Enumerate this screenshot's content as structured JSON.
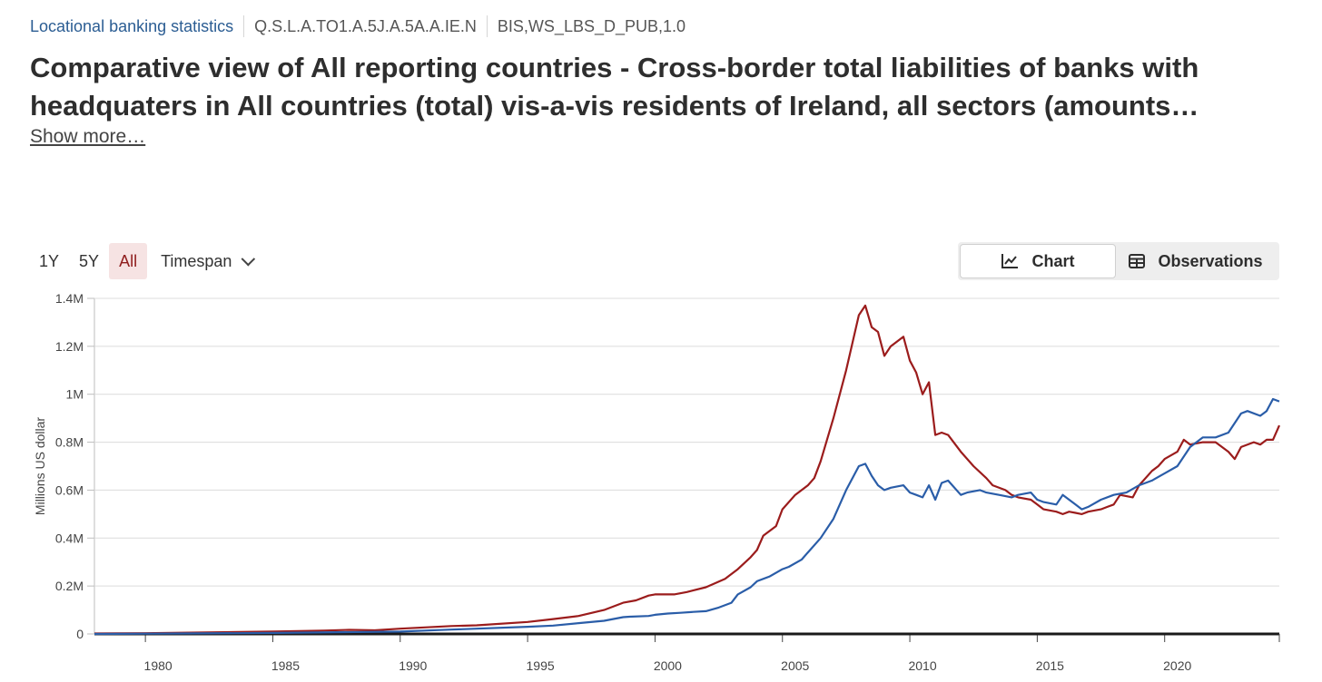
{
  "header": {
    "dataset_link": "Locational banking statistics",
    "series_key": "Q.S.L.A.TO1.A.5J.A.5A.A.IE.N",
    "dataflow": "BIS,WS_LBS_D_PUB,1.0"
  },
  "title": "Comparative view of All reporting countries - Cross-border total liabilities of banks with headquaters in All countries (total) vis-a-vis residents of Ireland, all sectors (amounts…",
  "show_more": "Show more…",
  "controls": {
    "ranges": [
      "1Y",
      "5Y",
      "All"
    ],
    "active_range": "All",
    "timespan": "Timespan",
    "views": {
      "chart": "Chart",
      "observations": "Observations"
    },
    "active_view": "Chart"
  },
  "icons": {
    "chart": "line-chart-icon",
    "observations": "table-icon",
    "timespan": "chevron-down-icon"
  },
  "colors": {
    "red_series": "#9b1c1c",
    "blue_series": "#2a5da8",
    "link": "#2b5d93",
    "active_range_bg": "#f6e3e3"
  },
  "chart_data": {
    "type": "line",
    "title": "",
    "xlabel": "",
    "ylabel": "Millions US dollar",
    "xlim": [
      1978,
      2024.5
    ],
    "ylim": [
      0,
      1400000
    ],
    "x_ticks": [
      1980,
      1985,
      1990,
      1995,
      2000,
      2005,
      2010,
      2015,
      2020
    ],
    "y_ticks": [
      0,
      200000,
      400000,
      600000,
      800000,
      1000000,
      1200000,
      1400000
    ],
    "y_tick_labels": [
      "0",
      "0.2M",
      "0.4M",
      "0.6M",
      "0.8M",
      "1M",
      "1.2M",
      "1.4M"
    ],
    "grid": true,
    "series": [
      {
        "name": "Red series",
        "color": "#9b1c1c",
        "x": [
          1978,
          1980,
          1985,
          1987,
          1988,
          1989,
          1990,
          1992,
          1993,
          1995,
          1996,
          1997,
          1998,
          1998.75,
          1999.25,
          1999.75,
          2000,
          2000.75,
          2001.25,
          2002,
          2002.75,
          2003.25,
          2003.75,
          2004,
          2004.25,
          2004.75,
          2005,
          2005.5,
          2006,
          2006.25,
          2006.5,
          2007,
          2007.5,
          2008,
          2008.25,
          2008.5,
          2008.75,
          2009,
          2009.25,
          2009.75,
          2010,
          2010.25,
          2010.5,
          2010.75,
          2011,
          2011.25,
          2011.5,
          2012,
          2012.5,
          2013,
          2013.25,
          2013.75,
          2014,
          2014.25,
          2014.75,
          2015,
          2015.25,
          2015.75,
          2016,
          2016.25,
          2016.5,
          2016.75,
          2017,
          2017.5,
          2017.75,
          2018,
          2018.25,
          2018.75,
          2019,
          2019.5,
          2019.75,
          2020,
          2020.5,
          2020.75,
          2021,
          2021.5,
          2022,
          2022.5,
          2022.75,
          2023,
          2023.5,
          2023.75,
          2024,
          2024.25,
          2024.5
        ],
        "values": [
          2000,
          3000,
          10000,
          14000,
          17000,
          15000,
          22000,
          33000,
          36000,
          50000,
          62000,
          75000,
          100000,
          130000,
          140000,
          160000,
          165000,
          165000,
          175000,
          195000,
          230000,
          270000,
          320000,
          350000,
          410000,
          450000,
          520000,
          580000,
          620000,
          650000,
          720000,
          900000,
          1100000,
          1330000,
          1370000,
          1280000,
          1260000,
          1160000,
          1200000,
          1240000,
          1140000,
          1090000,
          1000000,
          1050000,
          830000,
          840000,
          830000,
          760000,
          700000,
          650000,
          620000,
          600000,
          580000,
          570000,
          560000,
          540000,
          520000,
          510000,
          500000,
          510000,
          505000,
          500000,
          510000,
          520000,
          530000,
          540000,
          580000,
          570000,
          620000,
          680000,
          700000,
          730000,
          760000,
          810000,
          790000,
          800000,
          800000,
          760000,
          730000,
          780000,
          800000,
          790000,
          810000,
          810000,
          870000
        ]
      },
      {
        "name": "Blue series",
        "color": "#2a5da8",
        "x": [
          1978,
          1980,
          1985,
          1990,
          1992,
          1995,
          1996,
          1997,
          1998,
          1998.75,
          1999,
          1999.75,
          2000,
          2000.5,
          2001,
          2001.5,
          2002,
          2002.5,
          2003,
          2003.25,
          2003.75,
          2004,
          2004.5,
          2005,
          2005.25,
          2005.75,
          2006,
          2006.5,
          2007,
          2007.5,
          2008,
          2008.25,
          2008.5,
          2008.75,
          2009,
          2009.25,
          2009.75,
          2010,
          2010.25,
          2010.5,
          2010.75,
          2011,
          2011.25,
          2011.5,
          2012,
          2012.25,
          2012.75,
          2013,
          2013.5,
          2014,
          2014.25,
          2014.75,
          2015,
          2015.25,
          2015.75,
          2016,
          2016.5,
          2016.75,
          2017,
          2017.5,
          2018,
          2018.5,
          2019,
          2019.5,
          2020,
          2020.5,
          2021,
          2021.5,
          2022,
          2022.5,
          2023,
          2023.25,
          2023.75,
          2024,
          2024.25,
          2024.5
        ],
        "values": [
          0,
          1000,
          4000,
          10000,
          18000,
          30000,
          35000,
          45000,
          55000,
          70000,
          72000,
          75000,
          80000,
          85000,
          88000,
          92000,
          95000,
          110000,
          130000,
          165000,
          195000,
          220000,
          240000,
          270000,
          280000,
          310000,
          340000,
          400000,
          480000,
          600000,
          700000,
          710000,
          660000,
          620000,
          600000,
          610000,
          620000,
          590000,
          580000,
          570000,
          620000,
          560000,
          630000,
          640000,
          580000,
          590000,
          600000,
          590000,
          580000,
          570000,
          580000,
          590000,
          560000,
          550000,
          540000,
          580000,
          540000,
          520000,
          530000,
          560000,
          580000,
          590000,
          620000,
          640000,
          670000,
          700000,
          780000,
          820000,
          820000,
          840000,
          920000,
          930000,
          910000,
          930000,
          980000,
          970000
        ]
      }
    ]
  }
}
